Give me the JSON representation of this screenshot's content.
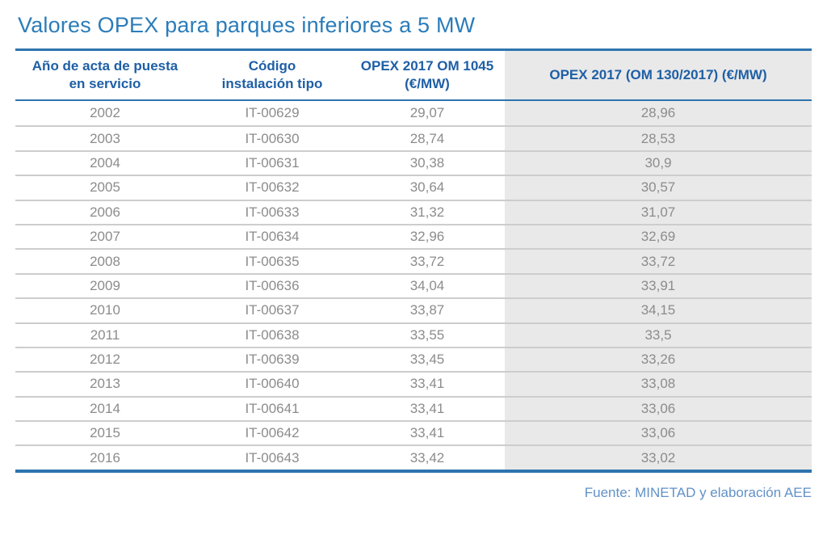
{
  "page": {
    "title": "Valores OPEX para parques inferiores a 5 MW",
    "source": "Fuente: MINETAD y elaboración AEE"
  },
  "chart_data": {
    "type": "table",
    "title": "Valores OPEX para parques inferiores a 5 MW",
    "columns": [
      "Año de acta de puesta\nen servicio",
      "Código\ninstalación tipo",
      "OPEX 2017 OM 1045\n(€/MW)",
      "OPEX 2017 (OM 130/2017) (€/MW)"
    ],
    "rows": [
      {
        "year": "2002",
        "code": "IT-00629",
        "opex_om_1045": "29,07",
        "opex_om_130_2017": "28,96"
      },
      {
        "year": "2003",
        "code": "IT-00630",
        "opex_om_1045": "28,74",
        "opex_om_130_2017": "28,53"
      },
      {
        "year": "2004",
        "code": "IT-00631",
        "opex_om_1045": "30,38",
        "opex_om_130_2017": "30,9"
      },
      {
        "year": "2005",
        "code": "IT-00632",
        "opex_om_1045": "30,64",
        "opex_om_130_2017": "30,57"
      },
      {
        "year": "2006",
        "code": "IT-00633",
        "opex_om_1045": "31,32",
        "opex_om_130_2017": "31,07"
      },
      {
        "year": "2007",
        "code": "IT-00634",
        "opex_om_1045": "32,96",
        "opex_om_130_2017": "32,69"
      },
      {
        "year": "2008",
        "code": "IT-00635",
        "opex_om_1045": "33,72",
        "opex_om_130_2017": "33,72"
      },
      {
        "year": "2009",
        "code": "IT-00636",
        "opex_om_1045": "34,04",
        "opex_om_130_2017": "33,91"
      },
      {
        "year": "2010",
        "code": "IT-00637",
        "opex_om_1045": "33,87",
        "opex_om_130_2017": "34,15"
      },
      {
        "year": "2011",
        "code": "IT-00638",
        "opex_om_1045": "33,55",
        "opex_om_130_2017": "33,5"
      },
      {
        "year": "2012",
        "code": "IT-00639",
        "opex_om_1045": "33,45",
        "opex_om_130_2017": "33,26"
      },
      {
        "year": "2013",
        "code": "IT-00640",
        "opex_om_1045": "33,41",
        "opex_om_130_2017": "33,08"
      },
      {
        "year": "2014",
        "code": "IT-00641",
        "opex_om_1045": "33,41",
        "opex_om_130_2017": "33,06"
      },
      {
        "year": "2015",
        "code": "IT-00642",
        "opex_om_1045": "33,41",
        "opex_om_130_2017": "33,06"
      },
      {
        "year": "2016",
        "code": "IT-00643",
        "opex_om_1045": "33,42",
        "opex_om_130_2017": "33,02"
      }
    ],
    "source": "Fuente: MINETAD y elaboración AEE",
    "layout_hints": {
      "highlighted_column": "OPEX 2017 (OM 130/2017) (€/MW)",
      "grid": "horizontal-separators-only",
      "legend_position": "none"
    }
  },
  "colors": {
    "title_blue": "#2b7cb9",
    "header_text_blue": "#1e5fa5",
    "rule_blue": "#2e74ae",
    "row_text_gray": "#8c8c8c",
    "separator_gray": "#cdcdcd",
    "shaded_column_bg": "#e9e9e9",
    "source_blue": "#6191c7"
  }
}
